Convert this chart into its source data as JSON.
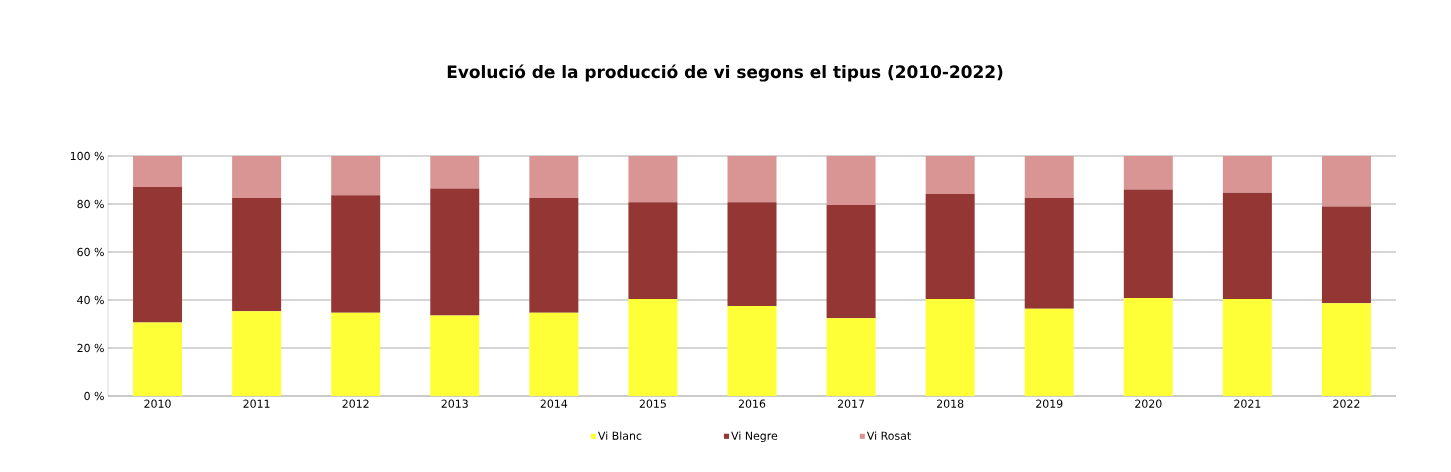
{
  "chart_data": {
    "type": "bar",
    "title": "Evolució de la producció de vi segons el tipus (2010-2022)",
    "categories": [
      "2010",
      "2011",
      "2012",
      "2013",
      "2014",
      "2015",
      "2016",
      "2017",
      "2018",
      "2019",
      "2020",
      "2021",
      "2022"
    ],
    "stacked": true,
    "series": [
      {
        "name": "Vi Blanc",
        "color": "#ffff38",
        "values": [
          30.6,
          35.3,
          34.7,
          33.5,
          34.7,
          40.4,
          37.5,
          32.4,
          40.4,
          36.4,
          40.8,
          40.4,
          38.6
        ]
      },
      {
        "name": "Vi Negre",
        "color": "#943634",
        "values": [
          56.5,
          47.2,
          48.9,
          53.0,
          47.8,
          40.3,
          43.2,
          47.2,
          43.8,
          46.1,
          45.2,
          44.3,
          40.4
        ]
      },
      {
        "name": "Vi Rosat",
        "color": "#d99594",
        "values": [
          12.9,
          17.5,
          16.4,
          13.5,
          17.5,
          19.3,
          19.3,
          20.4,
          15.8,
          17.5,
          14.0,
          15.3,
          21.0
        ]
      }
    ],
    "ylim": [
      0,
      100
    ],
    "yticks": [
      {
        "value": 0,
        "label": "0 %"
      },
      {
        "value": 20,
        "label": "20 %"
      },
      {
        "value": 40,
        "label": "40 %"
      },
      {
        "value": 60,
        "label": "60 %"
      },
      {
        "value": 80,
        "label": "80 %"
      },
      {
        "value": 100,
        "label": "100 %"
      }
    ],
    "grid": "y",
    "legend": "bottom"
  }
}
